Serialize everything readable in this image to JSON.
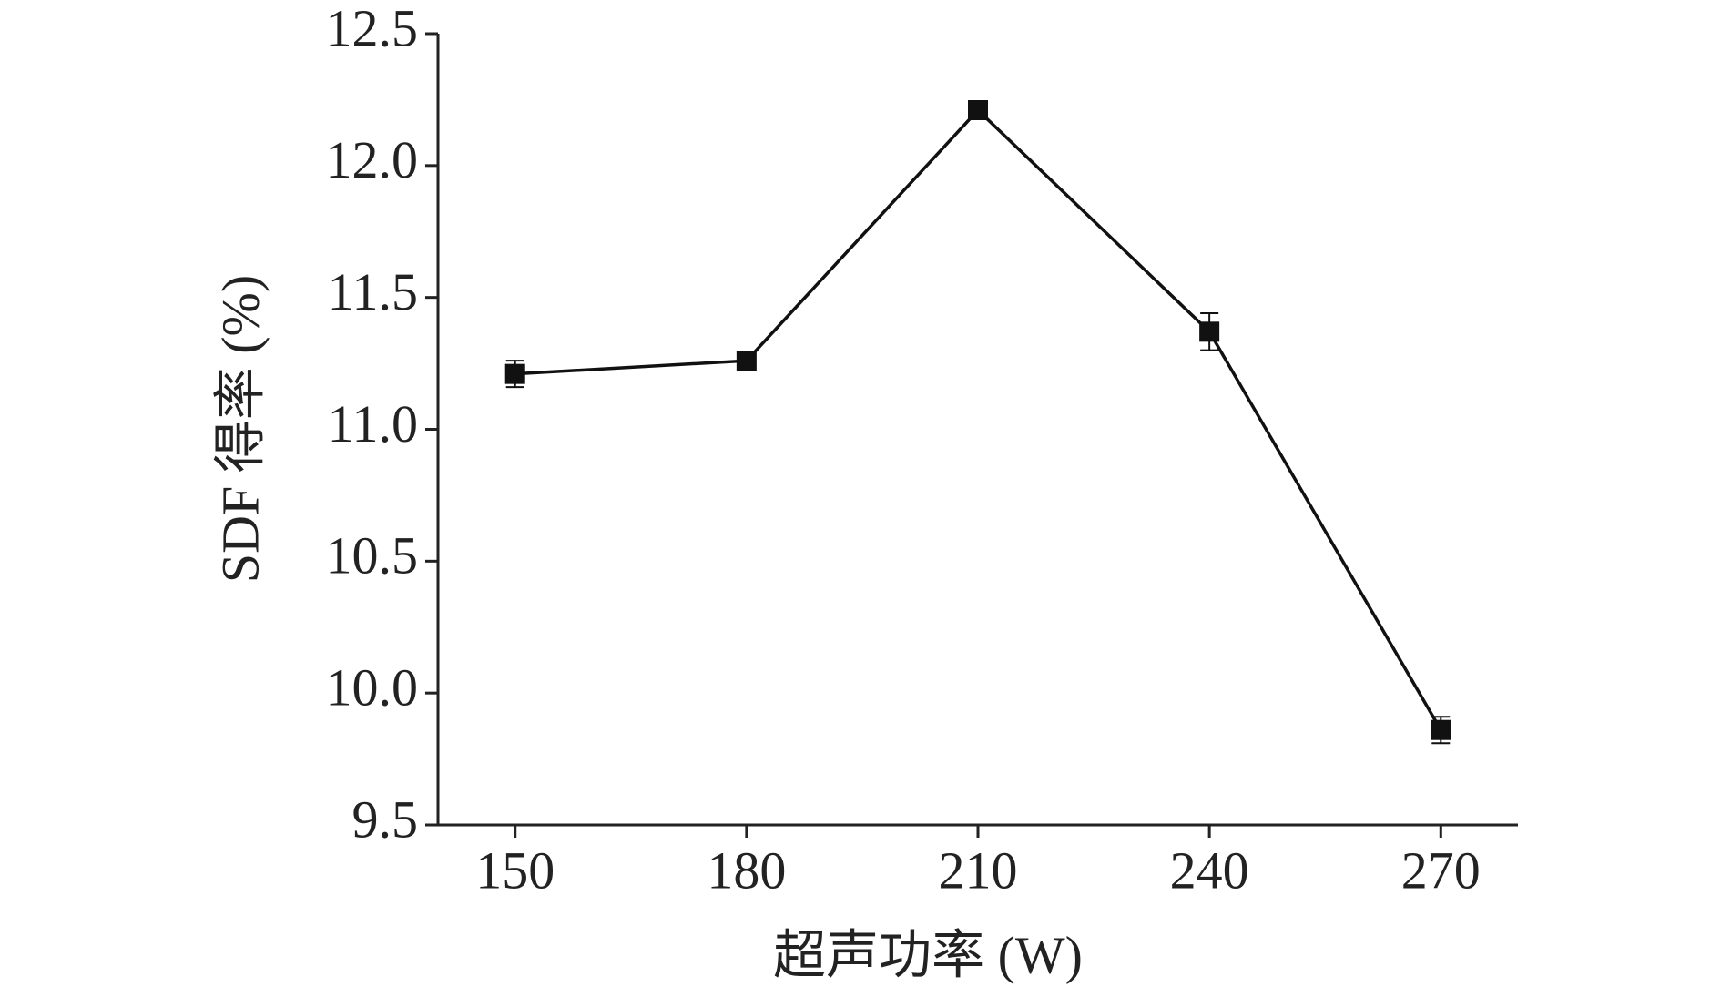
{
  "chart_data": {
    "type": "line",
    "x_label": "超声功率 (W)",
    "y_label": "SDF 得率 (%)",
    "x": [
      150,
      180,
      210,
      240,
      270
    ],
    "series": [
      {
        "color": "#111111",
        "values": [
          11.21,
          11.26,
          12.21,
          11.37,
          9.86
        ],
        "errors": [
          0.05,
          0.03,
          0.02,
          0.07,
          0.05
        ]
      }
    ],
    "xlim": [
      140,
      280
    ],
    "xticks": [
      150,
      180,
      210,
      240,
      270
    ],
    "ylim": [
      9.5,
      12.5
    ],
    "yticks": [
      9.5,
      {
        "value": 10,
        "label": "10.0"
      },
      10.5,
      {
        "value": 11,
        "label": "11.0"
      },
      11.5,
      {
        "value": 12,
        "label": "12.0"
      },
      12.5
    ],
    "grid": false
  }
}
